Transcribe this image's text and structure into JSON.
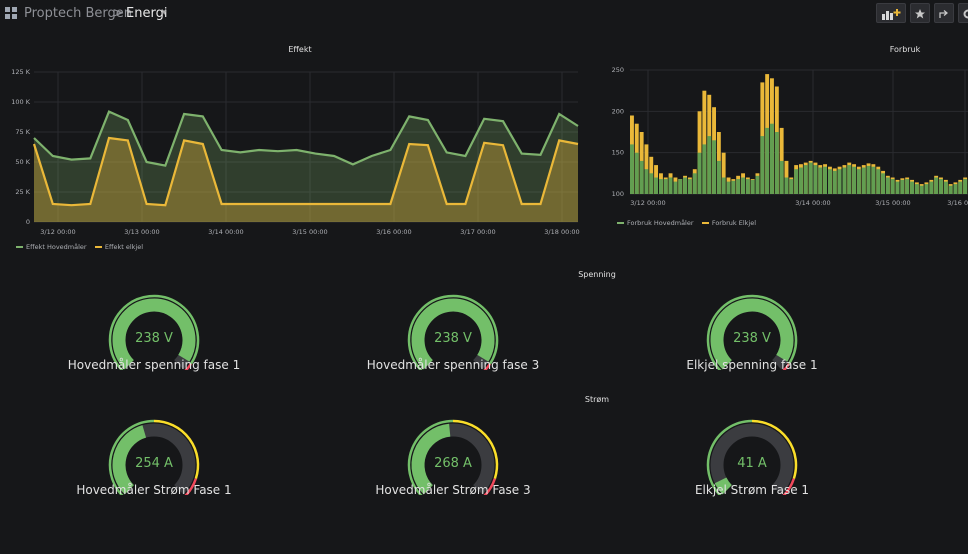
{
  "header": {
    "breadcrumb_root": "Proptech Bergen",
    "breadcrumb_sep": ">",
    "dashboard_title": "Energi",
    "caret": "▾",
    "buttons": [
      "add-panel",
      "star",
      "share",
      "settings"
    ]
  },
  "colors": {
    "background": "#161719",
    "green": "#7eb26d",
    "yellow": "#eab839",
    "gauge_green": "#73bf69",
    "gauge_yellow": "#fade2a",
    "gauge_red": "#f2495c"
  },
  "panels": {
    "effekt": {
      "title": "Effekt",
      "legend": [
        {
          "name": "Effekt Hovedmåler",
          "color": "#7eb26d"
        },
        {
          "name": "Effekt elkjel",
          "color": "#eab839"
        }
      ]
    },
    "forbruk": {
      "title": "Forbruk",
      "legend": [
        {
          "name": "Forbruk Hovedmåler",
          "color": "#7eb26d"
        },
        {
          "name": "Forbruk Elkjel",
          "color": "#eab839"
        }
      ]
    }
  },
  "chart_data": [
    {
      "type": "area",
      "title": "Effekt",
      "x_ticks": [
        "3/12 00:00",
        "3/13 00:00",
        "3/14 00:00",
        "3/15 00:00",
        "3/16 00:00",
        "3/17 00:00",
        "3/18 00:00"
      ],
      "y_ticks": [
        "0",
        "25 K",
        "50 K",
        "75 K",
        "100 K",
        "125 K"
      ],
      "ylim": [
        0,
        125000
      ],
      "grid": true,
      "legend_position": "bottom-left",
      "series": [
        {
          "name": "Effekt Hovedmåler",
          "values": [
            70000,
            55000,
            52000,
            53000,
            92000,
            85000,
            50000,
            47000,
            90000,
            88000,
            60000,
            58000,
            60000,
            59000,
            60000,
            57000,
            55000,
            48000,
            55000,
            60000,
            88000,
            85000,
            58000,
            55000,
            86000,
            84000,
            57000,
            56000,
            90000,
            80000
          ]
        },
        {
          "name": "Effekt elkjel",
          "values": [
            65000,
            15000,
            14000,
            15000,
            70000,
            68000,
            15000,
            14000,
            68000,
            65000,
            15000,
            15000,
            15000,
            15000,
            15000,
            15000,
            15000,
            15000,
            15000,
            15000,
            65000,
            64000,
            15000,
            15000,
            66000,
            64000,
            15000,
            15000,
            68000,
            65000
          ]
        }
      ]
    },
    {
      "type": "bar",
      "title": "Forbruk",
      "x_ticks": [
        "3/12 00:00",
        "3/14 00:00",
        "3/15 00:00",
        "3/16 00:00"
      ],
      "y_ticks": [
        "100",
        "150",
        "200",
        "250"
      ],
      "ylim": [
        100,
        250
      ],
      "grid": true,
      "legend_position": "bottom-left",
      "series": [
        {
          "name": "Forbruk Hovedmåler",
          "values": [
            160,
            150,
            140,
            130,
            125,
            120,
            118,
            118,
            120,
            115,
            118,
            120,
            118,
            125,
            150,
            160,
            170,
            165,
            140,
            120,
            115,
            116,
            118,
            120,
            118,
            117,
            122,
            170,
            180,
            185,
            175,
            140,
            120,
            118,
            130,
            132,
            135,
            138,
            135,
            132,
            133,
            130,
            128,
            130,
            132,
            135,
            133,
            130,
            132,
            134,
            133,
            130,
            125,
            120,
            118,
            115,
            117,
            118,
            115,
            112,
            110,
            112,
            115,
            120,
            118,
            115,
            110,
            112,
            115,
            118
          ]
        },
        {
          "name": "Forbruk Elkjel",
          "values": [
            195,
            185,
            175,
            160,
            145,
            135,
            125,
            120,
            125,
            120,
            118,
            122,
            120,
            130,
            200,
            225,
            220,
            205,
            175,
            150,
            120,
            118,
            122,
            125,
            120,
            118,
            125,
            235,
            245,
            240,
            230,
            180,
            140,
            120,
            135,
            136,
            138,
            140,
            138,
            135,
            136,
            133,
            131,
            133,
            135,
            138,
            136,
            133,
            135,
            137,
            136,
            133,
            128,
            122,
            120,
            117,
            119,
            120,
            117,
            114,
            112,
            114,
            117,
            122,
            120,
            117,
            112,
            114,
            117,
            120
          ]
        }
      ]
    }
  ],
  "sections": {
    "spenning": "Spenning",
    "strom": "Strøm"
  },
  "gauges": [
    {
      "value_text": "238 V",
      "label": "Hovedmåler spenning fase 1",
      "fraction": 0.95,
      "thresholds": "voltage"
    },
    {
      "value_text": "238 V",
      "label": "Hovedmåler spenning fase 3",
      "fraction": 0.95,
      "thresholds": "voltage"
    },
    {
      "value_text": "238 V",
      "label": "Elkjel spenning fase 1",
      "fraction": 0.95,
      "thresholds": "voltage"
    },
    {
      "value_text": "254 A",
      "label": "Hovedmåler Strøm Fase 1",
      "fraction": 0.44,
      "thresholds": "current"
    },
    {
      "value_text": "268 A",
      "label": "Hovedmåler Strøm Fase 3",
      "fraction": 0.48,
      "thresholds": "current"
    },
    {
      "value_text": "41 A",
      "label": "Elkjel Strøm Fase 1",
      "fraction": 0.07,
      "thresholds": "current"
    }
  ]
}
